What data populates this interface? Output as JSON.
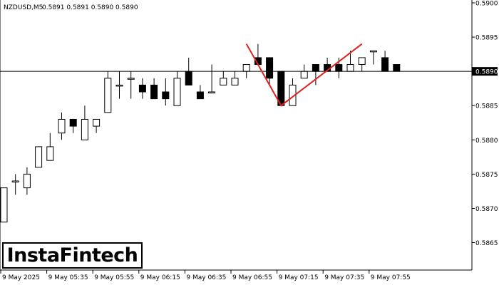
{
  "chart_data": {
    "type": "candlestick",
    "title": "NZDUSD,M5",
    "header_values": "0.5891 0.5891 0.5890 0.5890",
    "current_price": "0.5890",
    "ylim": [
      0.5861,
      0.59
    ],
    "y_ticks": [
      "0.5900",
      "0.5895",
      "0.5890",
      "0.5885",
      "0.5880",
      "0.5875",
      "0.5870",
      "0.5865"
    ],
    "x_ticks": [
      "9 May 2025",
      "9 May 05:35",
      "9 May 05:55",
      "9 May 06:15",
      "9 May 06:35",
      "9 May 06:55",
      "9 May 07:15",
      "9 May 07:35",
      "9 May 07:55"
    ],
    "candles": [
      {
        "o": 0.5868,
        "h": 0.5873,
        "l": 0.5868,
        "c": 0.5873
      },
      {
        "o": 0.5874,
        "h": 0.5875,
        "l": 0.5872,
        "c": 0.5874
      },
      {
        "o": 0.5873,
        "h": 0.5876,
        "l": 0.5872,
        "c": 0.5875
      },
      {
        "o": 0.5876,
        "h": 0.5879,
        "l": 0.5876,
        "c": 0.5879
      },
      {
        "o": 0.5877,
        "h": 0.5881,
        "l": 0.5877,
        "c": 0.5879
      },
      {
        "o": 0.5881,
        "h": 0.5884,
        "l": 0.588,
        "c": 0.5883
      },
      {
        "o": 0.5883,
        "h": 0.5883,
        "l": 0.5881,
        "c": 0.5882
      },
      {
        "o": 0.588,
        "h": 0.5885,
        "l": 0.588,
        "c": 0.5883
      },
      {
        "o": 0.5882,
        "h": 0.5883,
        "l": 0.5881,
        "c": 0.5883
      },
      {
        "o": 0.5884,
        "h": 0.589,
        "l": 0.5884,
        "c": 0.5889
      },
      {
        "o": 0.5888,
        "h": 0.589,
        "l": 0.5886,
        "c": 0.5888
      },
      {
        "o": 0.5889,
        "h": 0.589,
        "l": 0.5886,
        "c": 0.5889
      },
      {
        "o": 0.5888,
        "h": 0.5889,
        "l": 0.5886,
        "c": 0.5887
      },
      {
        "o": 0.5888,
        "h": 0.5889,
        "l": 0.5886,
        "c": 0.5886
      },
      {
        "o": 0.5887,
        "h": 0.5889,
        "l": 0.5885,
        "c": 0.5886
      },
      {
        "o": 0.5885,
        "h": 0.589,
        "l": 0.5885,
        "c": 0.5889
      },
      {
        "o": 0.589,
        "h": 0.5892,
        "l": 0.5888,
        "c": 0.5888
      },
      {
        "o": 0.5887,
        "h": 0.5888,
        "l": 0.5886,
        "c": 0.5886
      },
      {
        "o": 0.5887,
        "h": 0.5891,
        "l": 0.5887,
        "c": 0.5887
      },
      {
        "o": 0.5888,
        "h": 0.589,
        "l": 0.5888,
        "c": 0.5889
      },
      {
        "o": 0.5888,
        "h": 0.589,
        "l": 0.5888,
        "c": 0.5889
      },
      {
        "o": 0.589,
        "h": 0.5891,
        "l": 0.5889,
        "c": 0.5891
      },
      {
        "o": 0.5892,
        "h": 0.5894,
        "l": 0.5891,
        "c": 0.5891
      },
      {
        "o": 0.5892,
        "h": 0.5892,
        "l": 0.5888,
        "c": 0.5889
      },
      {
        "o": 0.589,
        "h": 0.589,
        "l": 0.5885,
        "c": 0.5885
      },
      {
        "o": 0.5885,
        "h": 0.5889,
        "l": 0.5885,
        "c": 0.5888
      },
      {
        "o": 0.5889,
        "h": 0.5891,
        "l": 0.5889,
        "c": 0.589
      },
      {
        "o": 0.5891,
        "h": 0.5891,
        "l": 0.5888,
        "c": 0.589
      },
      {
        "o": 0.5891,
        "h": 0.5892,
        "l": 0.589,
        "c": 0.589
      },
      {
        "o": 0.5891,
        "h": 0.5892,
        "l": 0.5889,
        "c": 0.589
      },
      {
        "o": 0.589,
        "h": 0.5893,
        "l": 0.589,
        "c": 0.5891
      },
      {
        "o": 0.5891,
        "h": 0.5892,
        "l": 0.589,
        "c": 0.5892
      },
      {
        "o": 0.5893,
        "h": 0.5893,
        "l": 0.5891,
        "c": 0.5893
      },
      {
        "o": 0.5892,
        "h": 0.5893,
        "l": 0.589,
        "c": 0.589
      },
      {
        "o": 0.5891,
        "h": 0.5891,
        "l": 0.589,
        "c": 0.589
      }
    ],
    "pattern_line": [
      {
        "candle": 21,
        "price": 0.5894
      },
      {
        "candle": 24,
        "price": 0.5885
      },
      {
        "candle": 31,
        "price": 0.5894
      }
    ],
    "grid": false,
    "colors": {
      "bull_body": "#ffffff",
      "bear_body": "#000000",
      "candle_outline": "#000000",
      "pattern_line": "#e02020",
      "price_line": "#000000",
      "price_box": "#000000"
    }
  },
  "logo": {
    "text": "InstaFintech"
  }
}
